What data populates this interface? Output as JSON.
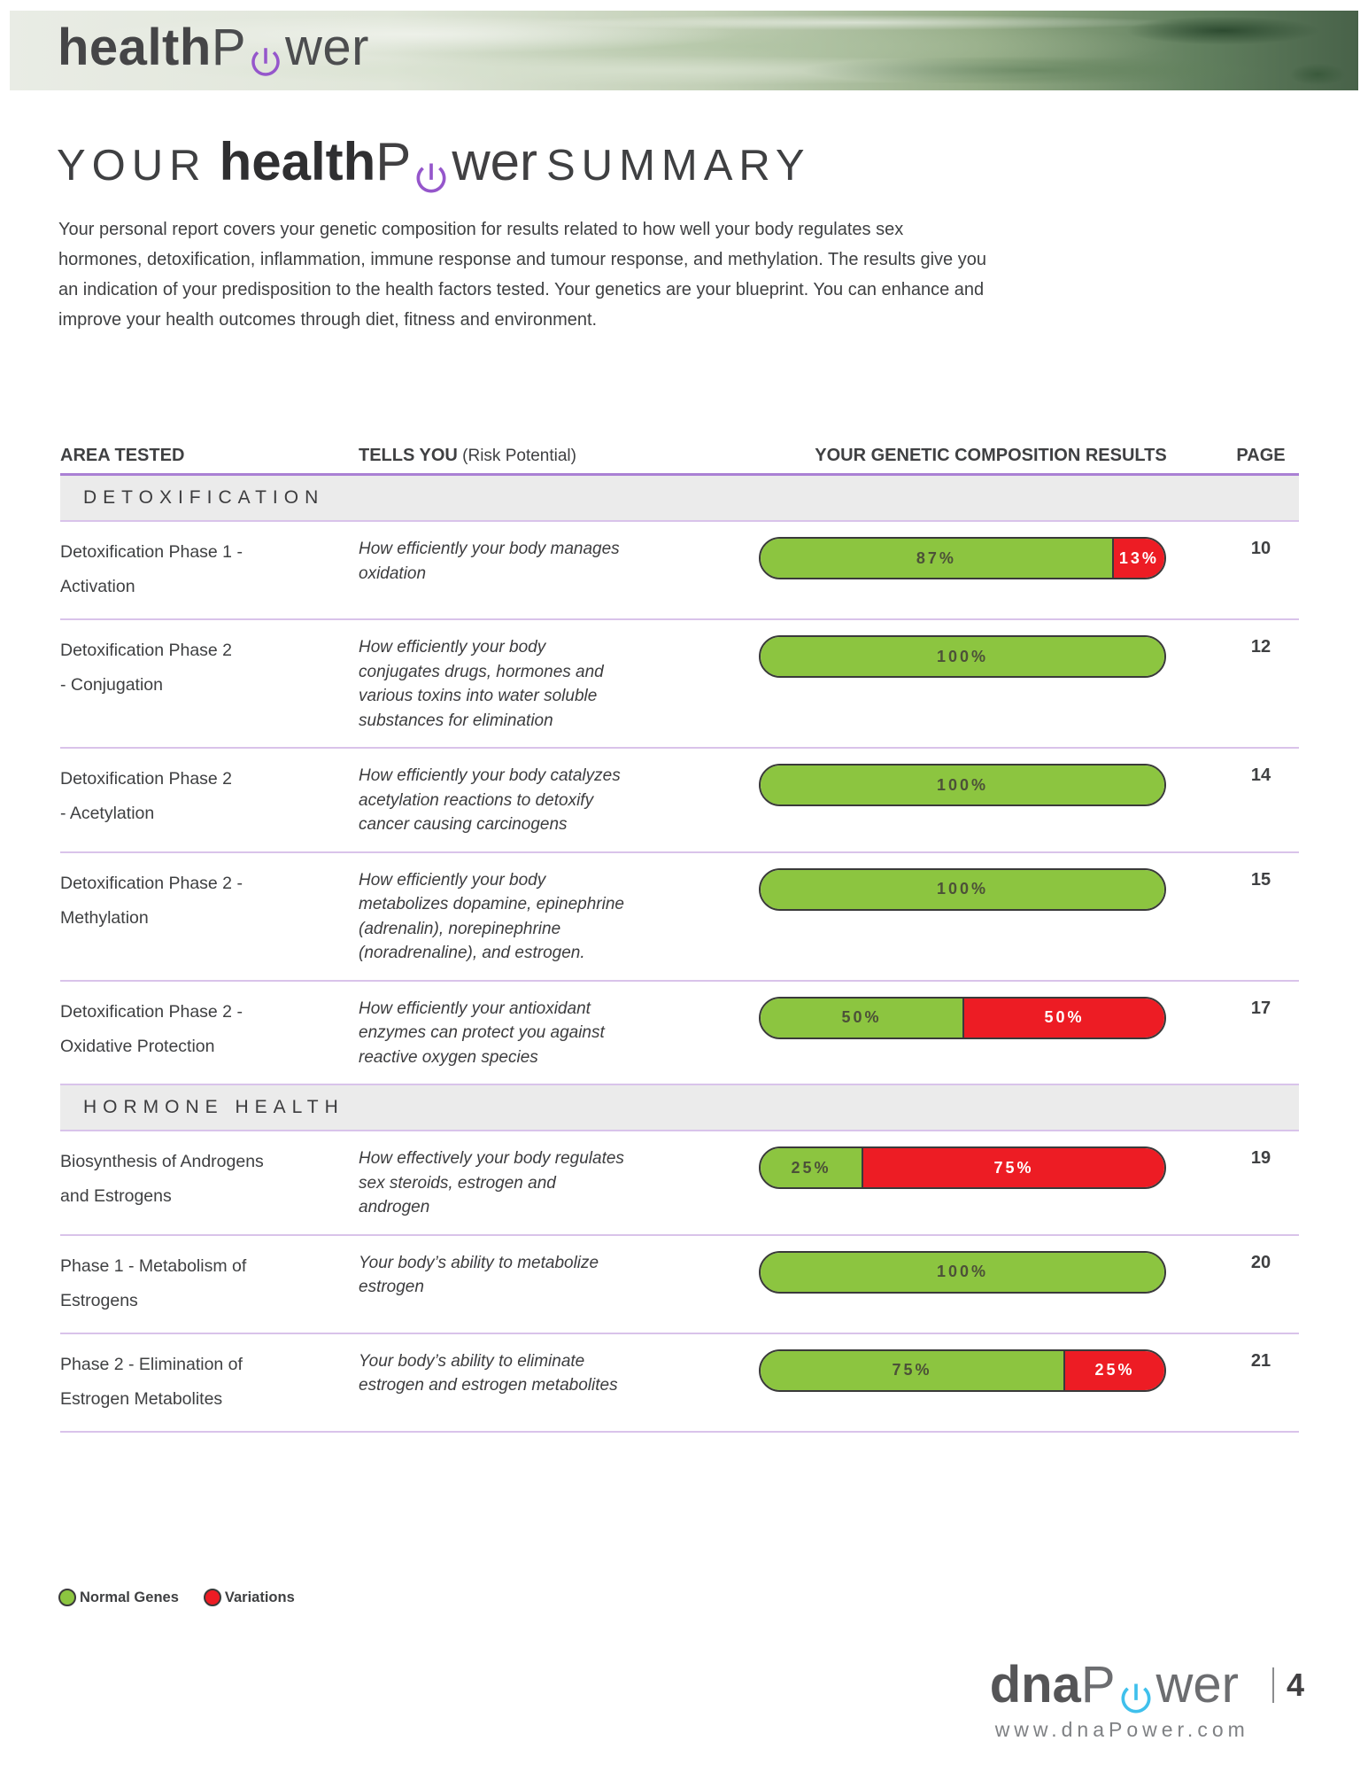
{
  "header": {
    "logo": {
      "health": "health",
      "p": "P",
      "wer": "wer"
    },
    "power_color": "#9556cb"
  },
  "title": {
    "pre": "YOUR",
    "brand_health": "health",
    "brand_p": "P",
    "brand_wer": "wer",
    "post": "SUMMARY"
  },
  "intro": {
    "lines": [
      "Your personal report covers your genetic composition for results related to how well your body regulates sex",
      "hormones, detoxification, inflammation, immune response and tumour response, and methylation. The results give you",
      "an indication of your predisposition to the health factors tested. Your genetics are your blueprint. You can enhance and",
      "improve your health outcomes through diet, fitness and environment."
    ]
  },
  "table": {
    "headers": {
      "area": "AREA TESTED",
      "tells_main": "TELLS YOU",
      "tells_sub": " (Risk Potential)",
      "results": "YOUR GENETIC COMPOSITION RESULTS",
      "page": "PAGE"
    },
    "colors": {
      "normal": "#8cc540",
      "variation": "#ed1c24"
    },
    "sections": [
      {
        "name": "DETOXIFICATION",
        "rows": [
          {
            "area_line1": "Detoxification Phase 1 -",
            "area_line2": "Activation",
            "tells": "How efficiently your body manages oxidation",
            "green_pct": 87,
            "red_pct": 13,
            "green_label": "87%",
            "red_label": "13%",
            "page": "10"
          },
          {
            "area_line1": "Detoxification Phase 2",
            "area_line2": "- Conjugation",
            "tells": "How efficiently your body conjugates drugs, hormones and various toxins into water soluble substances for elimination",
            "green_pct": 100,
            "red_pct": 0,
            "green_label": "100%",
            "red_label": "",
            "page": "12"
          },
          {
            "area_line1": "Detoxification Phase 2",
            "area_line2": "- Acetylation",
            "tells": "How efficiently your body catalyzes acetylation reactions to detoxify cancer causing carcinogens",
            "green_pct": 100,
            "red_pct": 0,
            "green_label": "100%",
            "red_label": "",
            "page": "14"
          },
          {
            "area_line1": "Detoxification Phase 2 -",
            "area_line2": "Methylation",
            "tells": "How efficiently your body metabolizes dopamine, epinephrine (adrenalin), norepinephrine (noradrenaline), and estrogen.",
            "green_pct": 100,
            "red_pct": 0,
            "green_label": "100%",
            "red_label": "",
            "page": "15"
          },
          {
            "area_line1": "Detoxification Phase 2 -",
            "area_line2": "Oxidative Protection",
            "tells": "How efficiently your antioxidant enzymes can protect you against reactive oxygen species",
            "green_pct": 50,
            "red_pct": 50,
            "green_label": "50%",
            "red_label": "50%",
            "page": "17"
          }
        ]
      },
      {
        "name": "HORMONE HEALTH",
        "rows": [
          {
            "area_line1": "Biosynthesis of Androgens",
            "area_line2": "and Estrogens",
            "tells": "How effectively your body regulates sex steroids, estrogen and androgen",
            "green_pct": 25,
            "red_pct": 75,
            "green_label": "25%",
            "red_label": "75%",
            "page": "19"
          },
          {
            "area_line1": "Phase 1 - Metabolism of",
            "area_line2": "Estrogens",
            "tells": "Your body’s ability to metabolize estrogen",
            "green_pct": 100,
            "red_pct": 0,
            "green_label": "100%",
            "red_label": "",
            "page": "20"
          },
          {
            "area_line1": "Phase 2 - Elimination of",
            "area_line2": "Estrogen Metabolites",
            "tells": "Your body’s ability to eliminate estrogen and estrogen metabolites",
            "green_pct": 75,
            "red_pct": 25,
            "green_label": "75%",
            "red_label": "25%",
            "page": "21"
          }
        ]
      }
    ]
  },
  "legend": {
    "items": [
      {
        "label": "Normal Genes",
        "color": "#8cc540"
      },
      {
        "label": "Variations",
        "color": "#ed1c24"
      }
    ]
  },
  "footer": {
    "logo": {
      "dna": "dna",
      "p": "P",
      "wer": "wer"
    },
    "power_color": "#3fc0ec",
    "page_number": "4",
    "url": "www.dnaPower.com"
  }
}
